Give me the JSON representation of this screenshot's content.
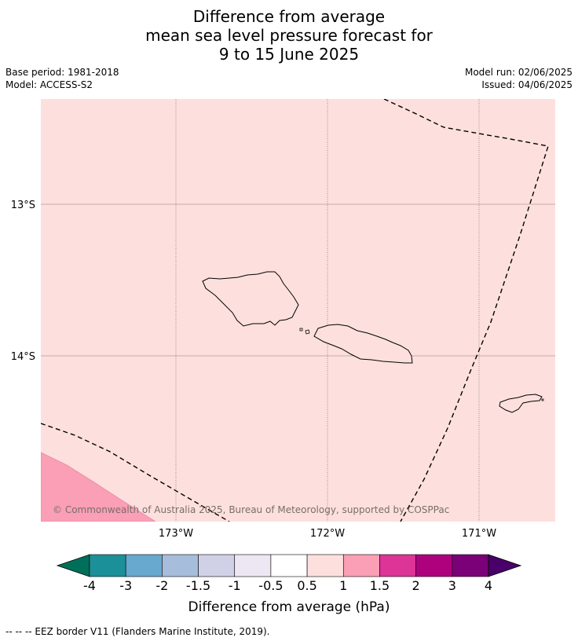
{
  "title_lines": [
    "Difference from average",
    "mean sea level pressure forecast for",
    "9 to 15 June 2025"
  ],
  "base_period": "Base period: 1981-2018",
  "model": "Model: ACCESS-S2",
  "model_run": "Model run: 02/06/2025",
  "issued": "Issued: 04/06/2025",
  "lat_labels": [
    "13°S",
    "14°S"
  ],
  "lon_labels": [
    "173°W",
    "172°W",
    "171°W"
  ],
  "copyright": "© Commonwealth of Australia 2025, Bureau of Meteorology, supported by COSPPac",
  "colorbar": {
    "ticks": [
      "-4",
      "-3",
      "-2",
      "-1.5",
      "-1",
      "-0.5",
      "0.5",
      "1",
      "1.5",
      "2",
      "3",
      "4"
    ],
    "colors": [
      "#006f5a",
      "#1c9099",
      "#67a9cf",
      "#a6bddb",
      "#d0d1e6",
      "#ece7f2",
      "#ffffff",
      "#fde0dd",
      "#fa9fb5",
      "#dd3497",
      "#ae017e",
      "#7a0177",
      "#49006a"
    ],
    "label": "Difference from average (hPa)"
  },
  "colors": {
    "map_background": "#fde0dd",
    "high_anomaly": "#fa9fb5"
  },
  "footnote": "--  --  -- EEZ border V11 (Flanders Marine Institute, 2019)."
}
